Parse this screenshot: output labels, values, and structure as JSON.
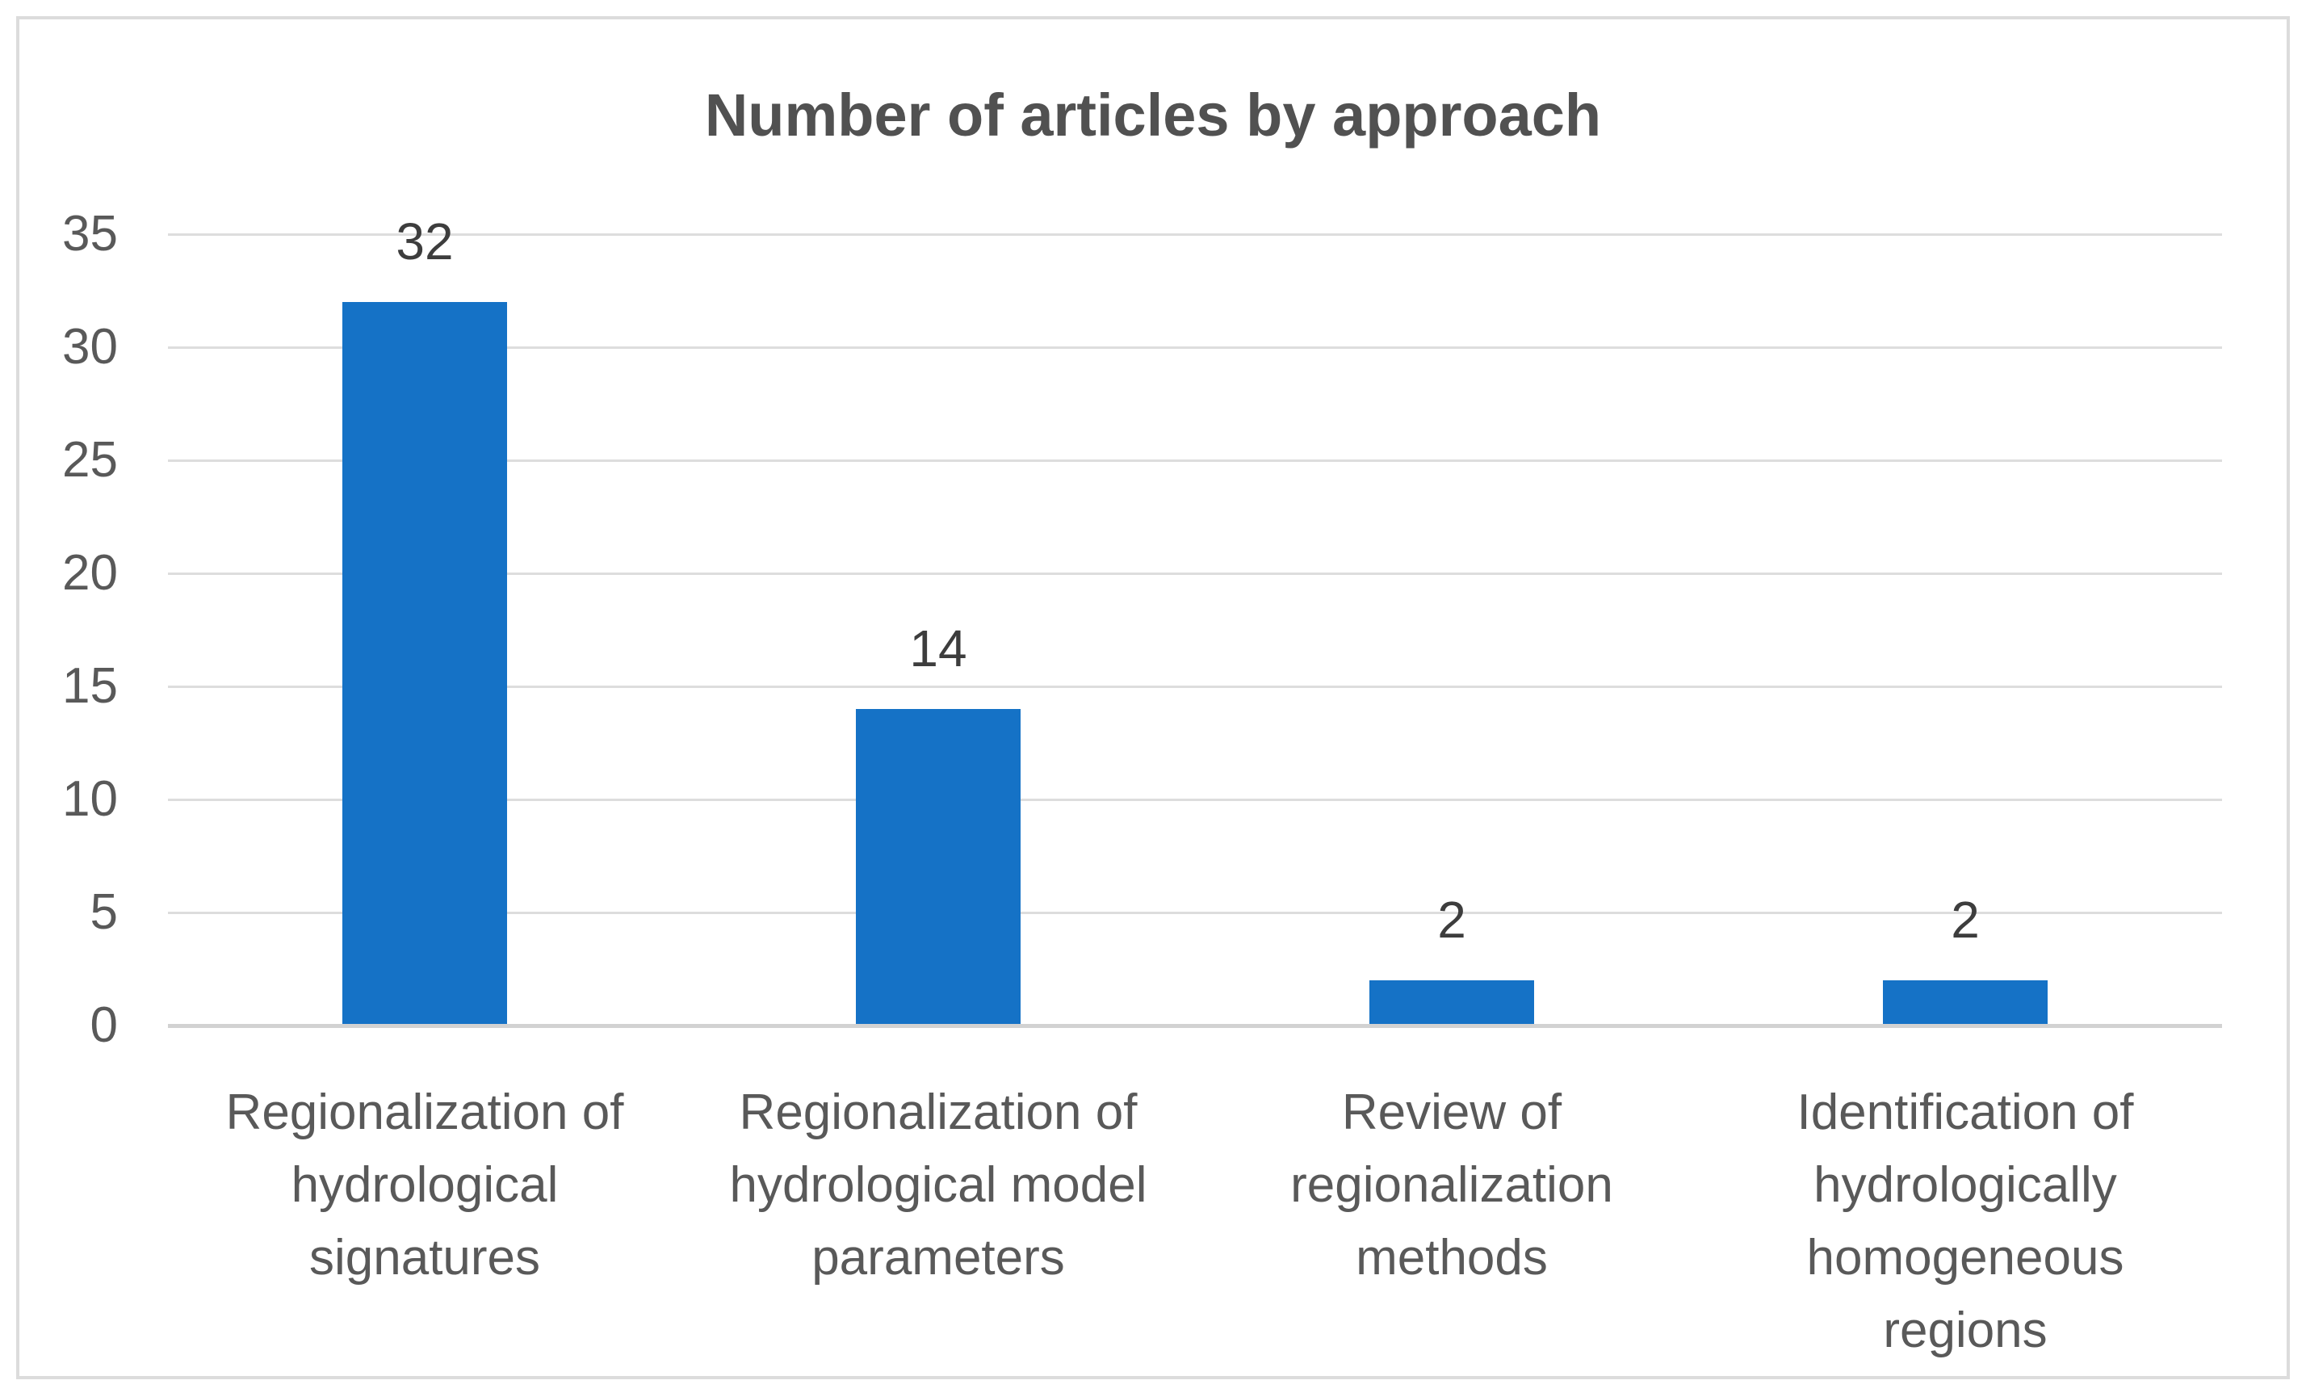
{
  "chart_data": {
    "type": "bar",
    "title": "Number of articles by approach",
    "categories": [
      "Regionalization of hydrological signatures",
      "Regionalization of hydrological model parameters",
      "Review of regionalization methods",
      "Identification of hydrologically homogeneous regions"
    ],
    "categories_display": [
      "Regionalization of\nhydrological\nsignatures",
      "Regionalization of\nhydrological model\nparameters",
      "Review of\nregionalization\nmethods",
      "Identification of\nhydrologically\nhomogeneous\nregions"
    ],
    "values": [
      32,
      14,
      2,
      2
    ],
    "yticks": [
      0,
      5,
      10,
      15,
      20,
      25,
      30,
      35
    ],
    "ylim": [
      0,
      35
    ],
    "ytick_step": 5,
    "grid": true,
    "legend": "none",
    "xlabel": "",
    "ylabel": "",
    "bar_color": "#1572C6",
    "gridline_color": "#DDDDDD",
    "axis_line_color": "#D2D2D2",
    "text_color": "#595959",
    "value_label_color": "#3D3D3D",
    "title_color": "#515151",
    "frame_border_color": "#DCDCDC",
    "background": "#FFFFFF"
  }
}
